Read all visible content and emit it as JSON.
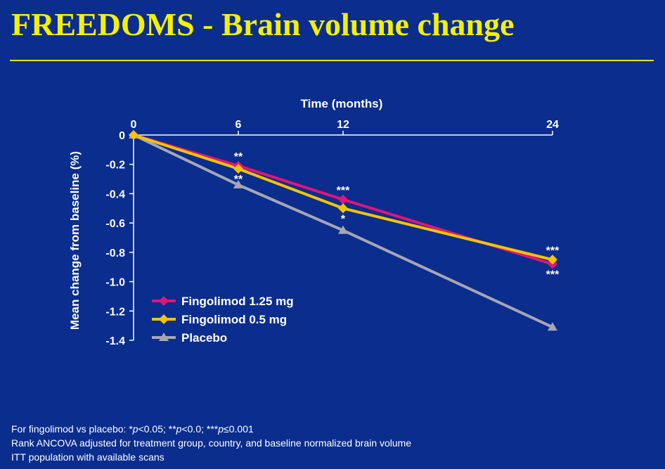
{
  "slide": {
    "title": "FREEDOMS - Brain volume change"
  },
  "chart_data": {
    "type": "line",
    "xlabel": "Time (months)",
    "ylabel": "Mean change from baseline (%)",
    "x": [
      0,
      6,
      12,
      24
    ],
    "x_ticks": [
      "0",
      "6",
      "12",
      "24"
    ],
    "y_ticks": [
      "0",
      "-0.2",
      "-0.4",
      "-0.6",
      "-0.8",
      "-1.0",
      "-1.2",
      "-1.4"
    ],
    "xlim": [
      0,
      24
    ],
    "ylim": [
      -1.4,
      0
    ],
    "grid": false,
    "legend_position": "bottom-left",
    "series": [
      {
        "name": "Fingolimod 1.25 mg",
        "values": [
          0,
          -0.21,
          -0.44,
          -0.88
        ],
        "color": "#e0157a",
        "marker": "diamond",
        "labels": [
          "",
          "**",
          "***",
          "***"
        ]
      },
      {
        "name": "Fingolimod 0.5 mg",
        "values": [
          0,
          -0.23,
          -0.5,
          -0.85
        ],
        "color": "#f5c400",
        "marker": "diamond",
        "labels": [
          "",
          "**",
          "*",
          "***"
        ]
      },
      {
        "name": "Placebo",
        "values": [
          0,
          -0.34,
          -0.65,
          -1.31
        ],
        "color": "#a6a6b4",
        "marker": "triangle",
        "labels": [
          "",
          "",
          "",
          ""
        ]
      }
    ]
  },
  "footnotes": {
    "line1_prefix": "For fingolimod vs placebo: ",
    "sig1_stars": "*",
    "sig1_p": "p",
    "sig1_rest": "<0.05; ",
    "sig2_stars": "**",
    "sig2_p": "p",
    "sig2_rest": "<0.0; ",
    "sig3_stars": "***",
    "sig3_p": "p",
    "sig3_rest": "≤0.001",
    "line2": "Rank ANCOVA adjusted for treatment group, country, and baseline normalized brain volume",
    "line3": "ITT population with available scans"
  }
}
